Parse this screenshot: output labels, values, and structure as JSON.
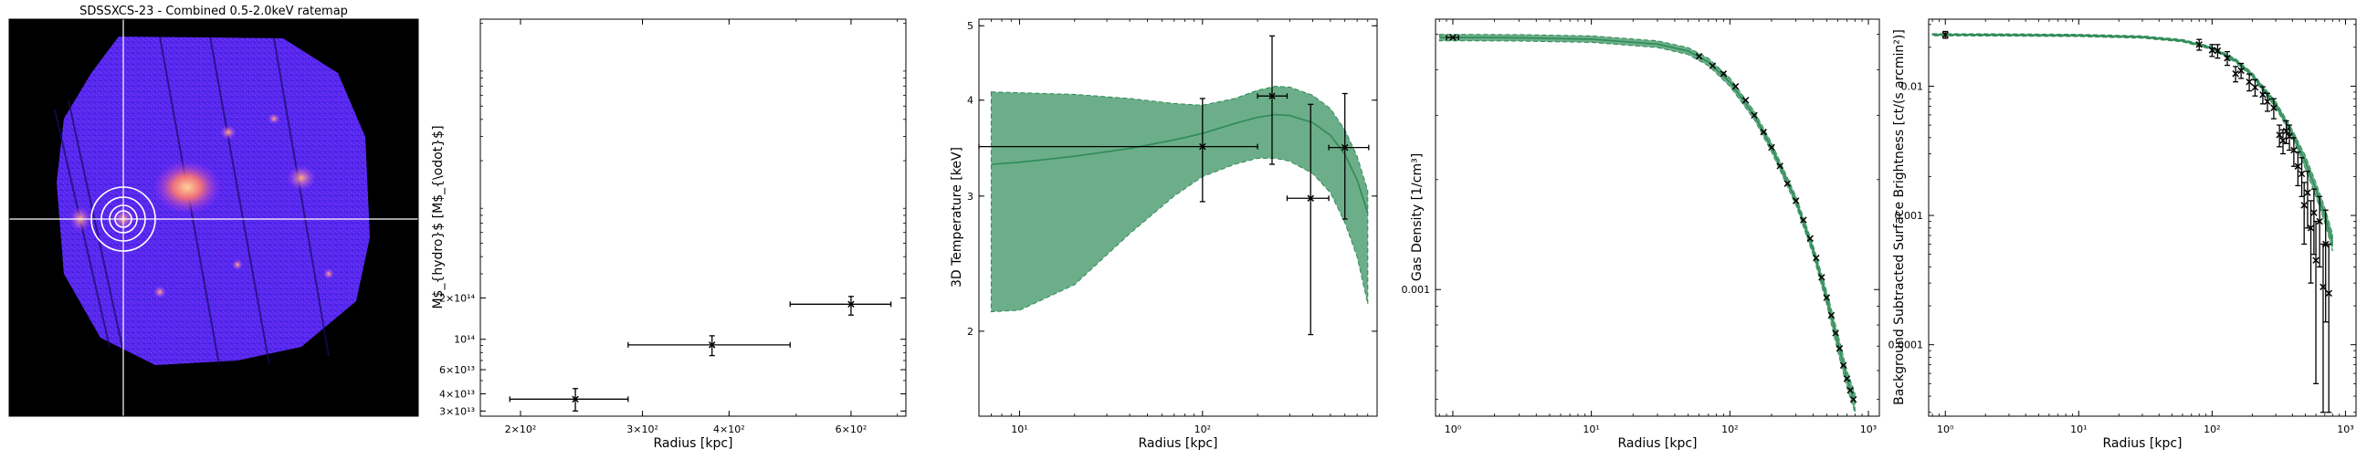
{
  "colors": {
    "band": "#2e8b57",
    "line": "#2e8b57",
    "points": "#000000"
  },
  "chart_data": [
    {
      "type": "image",
      "title": "SDSSXCS-23 - Combined 0.5-2.0keV ratemap",
      "crosshair": true,
      "circles": 4
    },
    {
      "type": "scatter",
      "title": "",
      "xlabel": "Radius [kpc]",
      "ylabel": "M$_{hydro}$ [M$_{\\odot}$]",
      "xscale": "log",
      "yscale": "log",
      "xlim": [
        175,
        720
      ],
      "ylim": [
        27500000000000,
        21500000000000000
      ],
      "xticks": [
        {
          "v": 200,
          "label": "2×10²"
        },
        {
          "v": 300,
          "label": "3×10²"
        },
        {
          "v": 400,
          "label": "4×10²"
        },
        {
          "v": 600,
          "label": "6×10²"
        }
      ],
      "yticks": [
        {
          "v": 30000000000000,
          "label": "3×10¹³"
        },
        {
          "v": 40000000000000,
          "label": "4×10¹³"
        },
        {
          "v": 60000000000000,
          "label": "6×10¹³"
        },
        {
          "v": 100000000000000,
          "label": "10¹⁴"
        },
        {
          "v": 200000000000000,
          "label": "2×10¹⁴"
        }
      ],
      "points": [
        {
          "x": 240,
          "xerr": [
            193,
            286
          ],
          "y": 36600000000000,
          "yerr": [
            30000000000000,
            43700000000000
          ]
        },
        {
          "x": 378,
          "xerr": [
            286,
            490
          ],
          "y": 91000000000000,
          "yerr": [
            76000000000000,
            106000000000000
          ]
        },
        {
          "x": 600,
          "xerr": [
            490,
            685
          ],
          "y": 180000000000000,
          "yerr": [
            150000000000000,
            205000000000000
          ]
        }
      ]
    },
    {
      "type": "line",
      "title": "",
      "xlabel": "Radius [kpc]",
      "ylabel": "3D Temperature [keV]",
      "xscale": "log",
      "yscale": "log",
      "xlim": [
        6,
        900
      ],
      "ylim": [
        1.55,
        5.1
      ],
      "xticks": [
        {
          "v": 10,
          "label": "10¹"
        },
        {
          "v": 100,
          "label": "10²"
        }
      ],
      "yticks": [
        {
          "v": 2,
          "label": "2"
        },
        {
          "v": 3,
          "label": "3"
        },
        {
          "v": 4,
          "label": "4"
        },
        {
          "v": 5,
          "label": "5"
        }
      ],
      "model": {
        "x": [
          7,
          10,
          20,
          40,
          70,
          100,
          150,
          200,
          250,
          300,
          400,
          500,
          600,
          700,
          800
        ],
        "y": [
          3.3,
          3.32,
          3.38,
          3.46,
          3.55,
          3.62,
          3.73,
          3.8,
          3.83,
          3.82,
          3.74,
          3.6,
          3.4,
          3.15,
          2.85
        ],
        "upper": [
          4.1,
          4.09,
          4.07,
          4.02,
          3.96,
          3.94,
          4.02,
          4.12,
          4.17,
          4.16,
          4.06,
          3.9,
          3.66,
          3.38,
          3.05
        ],
        "lower": [
          2.12,
          2.13,
          2.3,
          2.68,
          3.0,
          3.18,
          3.3,
          3.36,
          3.36,
          3.33,
          3.21,
          3.03,
          2.77,
          2.5,
          2.17
        ]
      },
      "points": [
        {
          "x": 100,
          "xerr": [
            6,
            200
          ],
          "y": 3.48,
          "yerr": [
            2.95,
            4.02
          ]
        },
        {
          "x": 240,
          "xerr": [
            200,
            290
          ],
          "y": 4.05,
          "yerr": [
            3.3,
            4.85
          ]
        },
        {
          "x": 390,
          "xerr": [
            290,
            490
          ],
          "y": 2.98,
          "yerr": [
            1.98,
            3.95
          ]
        },
        {
          "x": 600,
          "xerr": [
            490,
            810
          ],
          "y": 3.47,
          "yerr": [
            2.8,
            4.08
          ]
        }
      ]
    },
    {
      "type": "line",
      "title": "",
      "xlabel": "Radius [kpc]",
      "ylabel": "Gas Density [1/cm³]",
      "xscale": "log",
      "yscale": "log",
      "xlim": [
        0.75,
        1200
      ],
      "ylim": [
        0.00045,
        0.0055
      ],
      "xticks": [
        {
          "v": 1,
          "label": "10⁰"
        },
        {
          "v": 10,
          "label": "10¹"
        },
        {
          "v": 100,
          "label": "10²"
        },
        {
          "v": 1000,
          "label": "10³"
        }
      ],
      "yticks": [
        {
          "v": 0.001,
          "label": "0.001"
        }
      ],
      "model": {
        "x": [
          0.8,
          1,
          3,
          10,
          30,
          50,
          70,
          100,
          150,
          200,
          300,
          400,
          500,
          600,
          700,
          800
        ],
        "y": [
          0.0049,
          0.0049,
          0.00489,
          0.00485,
          0.0047,
          0.0045,
          0.0042,
          0.0037,
          0.003,
          0.00245,
          0.00175,
          0.00128,
          0.00095,
          0.00072,
          0.00057,
          0.00049
        ],
        "upper": [
          0.005,
          0.005,
          0.00499,
          0.00495,
          0.0048,
          0.0046,
          0.0043,
          0.0038,
          0.00308,
          0.00252,
          0.0018,
          0.00132,
          0.00099,
          0.00076,
          0.0006,
          0.00052
        ],
        "lower": [
          0.0048,
          0.0048,
          0.00479,
          0.00475,
          0.0046,
          0.0044,
          0.0041,
          0.0036,
          0.00292,
          0.00238,
          0.0017,
          0.00124,
          0.00091,
          0.00068,
          0.00054,
          0.00046
        ]
      },
      "points": [
        {
          "x": 1,
          "y": 0.0049,
          "xerr": [
            0.9,
            1.1
          ]
        },
        {
          "x": 60,
          "y": 0.00435
        },
        {
          "x": 75,
          "y": 0.0041
        },
        {
          "x": 90,
          "y": 0.0039
        },
        {
          "x": 110,
          "y": 0.0036
        },
        {
          "x": 130,
          "y": 0.0033
        },
        {
          "x": 150,
          "y": 0.003
        },
        {
          "x": 175,
          "y": 0.0027
        },
        {
          "x": 200,
          "y": 0.00245
        },
        {
          "x": 230,
          "y": 0.00218
        },
        {
          "x": 260,
          "y": 0.00195
        },
        {
          "x": 300,
          "y": 0.00175
        },
        {
          "x": 340,
          "y": 0.00155
        },
        {
          "x": 380,
          "y": 0.00138
        },
        {
          "x": 420,
          "y": 0.00122
        },
        {
          "x": 460,
          "y": 0.00108
        },
        {
          "x": 500,
          "y": 0.00095
        },
        {
          "x": 540,
          "y": 0.00085
        },
        {
          "x": 580,
          "y": 0.00076
        },
        {
          "x": 620,
          "y": 0.00069
        },
        {
          "x": 660,
          "y": 0.00062
        },
        {
          "x": 700,
          "y": 0.00057
        },
        {
          "x": 740,
          "y": 0.00053
        },
        {
          "x": 780,
          "y": 0.0005
        }
      ]
    },
    {
      "type": "line",
      "title": "",
      "xlabel": "Radius [kpc]",
      "ylabel": "Background Subtracted Surface Brightness [ct/(s arcmin²)]",
      "xscale": "log",
      "yscale": "log",
      "xlim": [
        0.75,
        1200
      ],
      "ylim": [
        2.8e-05,
        0.033
      ],
      "xticks": [
        {
          "v": 1,
          "label": "10⁰"
        },
        {
          "v": 10,
          "label": "10¹"
        },
        {
          "v": 100,
          "label": "10²"
        },
        {
          "v": 1000,
          "label": "10³"
        }
      ],
      "yticks": [
        {
          "v": 0.0001,
          "label": "0.0001"
        },
        {
          "v": 0.001,
          "label": "0.001"
        },
        {
          "v": 0.01,
          "label": "0.01"
        }
      ],
      "model": {
        "x": [
          0.8,
          1,
          3,
          10,
          30,
          60,
          100,
          150,
          200,
          300,
          400,
          500,
          600,
          700,
          800
        ],
        "y": [
          0.025,
          0.025,
          0.0249,
          0.0247,
          0.024,
          0.0225,
          0.0197,
          0.0158,
          0.0122,
          0.0072,
          0.0043,
          0.0026,
          0.0016,
          0.001,
          0.00062
        ],
        "upper": [
          0.0255,
          0.0255,
          0.0254,
          0.0252,
          0.0245,
          0.023,
          0.0202,
          0.0163,
          0.0127,
          0.0076,
          0.0046,
          0.0029,
          0.0018,
          0.00115,
          0.00072
        ],
        "lower": [
          0.0245,
          0.0245,
          0.0244,
          0.0242,
          0.0235,
          0.022,
          0.0192,
          0.0153,
          0.0117,
          0.0068,
          0.004,
          0.0023,
          0.0014,
          0.00088,
          0.00053
        ]
      },
      "points": [
        {
          "x": 1,
          "y": 0.025,
          "yerr": [
            0.0235,
            0.0265
          ]
        },
        {
          "x": 80,
          "y": 0.021,
          "yerr": [
            0.019,
            0.023
          ]
        },
        {
          "x": 100,
          "y": 0.019,
          "yerr": [
            0.017,
            0.021
          ]
        },
        {
          "x": 110,
          "y": 0.0188,
          "yerr": [
            0.0165,
            0.021
          ]
        },
        {
          "x": 130,
          "y": 0.0165,
          "yerr": [
            0.0145,
            0.0185
          ]
        },
        {
          "x": 150,
          "y": 0.0125,
          "yerr": [
            0.0108,
            0.0142
          ]
        },
        {
          "x": 165,
          "y": 0.0132,
          "yerr": [
            0.0115,
            0.015
          ]
        },
        {
          "x": 190,
          "y": 0.0108,
          "yerr": [
            0.0092,
            0.0124
          ]
        },
        {
          "x": 210,
          "y": 0.0098,
          "yerr": [
            0.0084,
            0.0112
          ]
        },
        {
          "x": 240,
          "y": 0.0086,
          "yerr": [
            0.0073,
            0.0099
          ]
        },
        {
          "x": 260,
          "y": 0.0076,
          "yerr": [
            0.0064,
            0.0088
          ]
        },
        {
          "x": 290,
          "y": 0.0068,
          "yerr": [
            0.0056,
            0.008
          ]
        },
        {
          "x": 320,
          "y": 0.0042,
          "yerr": [
            0.0034,
            0.005
          ]
        },
        {
          "x": 340,
          "y": 0.0038,
          "yerr": [
            0.003,
            0.0046
          ]
        },
        {
          "x": 360,
          "y": 0.0045,
          "yerr": [
            0.0036,
            0.0054
          ]
        },
        {
          "x": 380,
          "y": 0.0041,
          "yerr": [
            0.0032,
            0.005
          ]
        },
        {
          "x": 410,
          "y": 0.0032,
          "yerr": [
            0.0024,
            0.004
          ]
        },
        {
          "x": 440,
          "y": 0.0024,
          "yerr": [
            0.0017,
            0.0031
          ]
        },
        {
          "x": 470,
          "y": 0.0021,
          "yerr": [
            0.0014,
            0.0028
          ]
        },
        {
          "x": 490,
          "y": 0.0012,
          "yerr": [
            0.0006,
            0.0018
          ]
        },
        {
          "x": 520,
          "y": 0.0015,
          "yerr": [
            0.0008,
            0.0022
          ]
        },
        {
          "x": 550,
          "y": 0.0008,
          "yerr": [
            0.0003,
            0.0013
          ]
        },
        {
          "x": 580,
          "y": 0.00105,
          "yerr": [
            0.0005,
            0.0016
          ]
        },
        {
          "x": 600,
          "y": 0.00045,
          "yerr": [
            5e-05,
            0.0009
          ]
        },
        {
          "x": 640,
          "y": 0.0009,
          "yerr": [
            0.0004,
            0.0014
          ]
        },
        {
          "x": 680,
          "y": 0.00028,
          "yerr": [
            3e-05,
            0.0006
          ]
        },
        {
          "x": 710,
          "y": 0.0006,
          "yerr": [
            0.00015,
            0.0011
          ]
        },
        {
          "x": 750,
          "y": 0.00025,
          "yerr": [
            3e-05,
            0.0006
          ]
        }
      ]
    }
  ]
}
